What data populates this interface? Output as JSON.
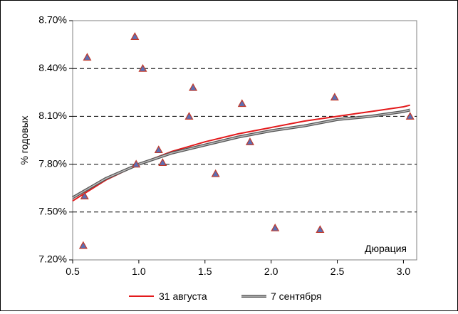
{
  "chart_data": {
    "type": "scatter",
    "title": "",
    "ylabel": "% годовых",
    "annotation": "Дюрация",
    "xlim": [
      0.5,
      3.1
    ],
    "ylim": [
      7.2,
      8.7
    ],
    "x_ticks": [
      "0.5",
      "1.0",
      "1.5",
      "2.0",
      "2.5",
      "3.0"
    ],
    "y_ticks": [
      "7.20%",
      "7.50%",
      "7.80%",
      "8.10%",
      "8.40%",
      "8.70%"
    ],
    "grid": "horizontal dashed",
    "legend_position": "bottom",
    "points": [
      {
        "x": 0.58,
        "y": 7.29
      },
      {
        "x": 0.59,
        "y": 7.6
      },
      {
        "x": 0.61,
        "y": 8.47
      },
      {
        "x": 0.97,
        "y": 8.6
      },
      {
        "x": 0.98,
        "y": 7.8
      },
      {
        "x": 1.03,
        "y": 8.4
      },
      {
        "x": 1.15,
        "y": 7.89
      },
      {
        "x": 1.18,
        "y": 7.81
      },
      {
        "x": 1.38,
        "y": 8.1
      },
      {
        "x": 1.41,
        "y": 8.28
      },
      {
        "x": 1.58,
        "y": 7.74
      },
      {
        "x": 1.78,
        "y": 8.18
      },
      {
        "x": 1.84,
        "y": 7.94
      },
      {
        "x": 2.03,
        "y": 7.4
      },
      {
        "x": 2.37,
        "y": 7.39
      },
      {
        "x": 2.48,
        "y": 8.22
      },
      {
        "x": 3.05,
        "y": 8.1
      }
    ],
    "series": [
      {
        "name": "31 августа",
        "color": "#e31a1c",
        "x": [
          0.5,
          0.75,
          1.0,
          1.25,
          1.5,
          1.75,
          2.0,
          2.25,
          2.5,
          2.75,
          3.0,
          3.05
        ],
        "y": [
          7.57,
          7.7,
          7.8,
          7.88,
          7.94,
          7.99,
          8.03,
          8.07,
          8.1,
          8.13,
          8.16,
          8.17
        ]
      },
      {
        "name": "7 сентября",
        "color": "#666666",
        "x": [
          0.5,
          0.75,
          1.0,
          1.25,
          1.5,
          1.75,
          2.0,
          2.25,
          2.5,
          2.75,
          3.0,
          3.05
        ],
        "y": [
          7.59,
          7.71,
          7.8,
          7.87,
          7.92,
          7.97,
          8.01,
          8.04,
          8.08,
          8.1,
          8.13,
          8.14
        ]
      }
    ],
    "marker": {
      "shape": "triangle",
      "fill": "#5b6fb4",
      "stroke": "#c0392b"
    }
  }
}
